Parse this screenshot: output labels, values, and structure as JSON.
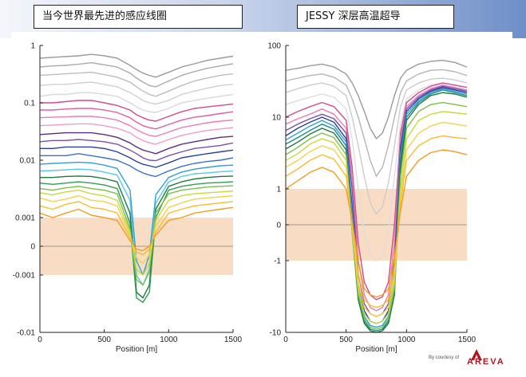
{
  "titles": {
    "left": "当今世界最先进的感应线圈",
    "right": "JESSY 深层高温超导"
  },
  "credit": {
    "by": "By courtesy of",
    "brand": "AREVA",
    "brand_color": "#b0161e"
  },
  "chart_data": [
    {
      "type": "line",
      "title": "当今世界最先进的感应线圈",
      "xlabel": "Position [m]",
      "xlim": [
        0,
        1500
      ],
      "x_ticks": [
        "0",
        "500",
        "1000",
        "1500"
      ],
      "yscale": "symlog",
      "ylim": [
        -0.01,
        1
      ],
      "y_ticks": [
        "1",
        "0.1",
        "0.01",
        "0.001",
        "0",
        "-0.001",
        "-0.01"
      ],
      "shaded_band": {
        "from": -0.001,
        "to": 0.001,
        "color": "#f9dcc4"
      },
      "x": [
        0,
        100,
        200,
        300,
        400,
        500,
        600,
        700,
        750,
        800,
        850,
        900,
        1000,
        1100,
        1200,
        1300,
        1400,
        1500
      ],
      "series": [
        {
          "color": "#9a9a9a",
          "values": [
            0.6,
            0.62,
            0.64,
            0.66,
            0.7,
            0.66,
            0.6,
            0.45,
            0.38,
            0.33,
            0.3,
            0.28,
            0.34,
            0.42,
            0.48,
            0.55,
            0.6,
            0.65
          ]
        },
        {
          "color": "#ababab",
          "values": [
            0.42,
            0.44,
            0.45,
            0.47,
            0.5,
            0.46,
            0.42,
            0.33,
            0.27,
            0.23,
            0.2,
            0.19,
            0.24,
            0.3,
            0.35,
            0.4,
            0.44,
            0.48
          ]
        },
        {
          "color": "#bdbdbd",
          "values": [
            0.3,
            0.31,
            0.32,
            0.33,
            0.34,
            0.31,
            0.28,
            0.23,
            0.19,
            0.16,
            0.14,
            0.13,
            0.16,
            0.2,
            0.24,
            0.27,
            0.3,
            0.32
          ]
        },
        {
          "color": "#cfcfcf",
          "values": [
            0.2,
            0.21,
            0.21,
            0.22,
            0.23,
            0.21,
            0.19,
            0.15,
            0.13,
            0.11,
            0.1,
            0.095,
            0.11,
            0.14,
            0.16,
            0.18,
            0.2,
            0.21
          ]
        },
        {
          "color": "#d9d9d9",
          "values": [
            0.13,
            0.14,
            0.14,
            0.15,
            0.15,
            0.14,
            0.13,
            0.1,
            0.085,
            0.075,
            0.07,
            0.068,
            0.08,
            0.1,
            0.11,
            0.12,
            0.13,
            0.14
          ]
        },
        {
          "color": "#d44a8a",
          "values": [
            0.1,
            0.1,
            0.105,
            0.11,
            0.11,
            0.1,
            0.09,
            0.075,
            0.062,
            0.055,
            0.05,
            0.048,
            0.058,
            0.07,
            0.08,
            0.085,
            0.09,
            0.095
          ]
        },
        {
          "color": "#e05fa0",
          "values": [
            0.075,
            0.075,
            0.078,
            0.08,
            0.08,
            0.075,
            0.068,
            0.055,
            0.046,
            0.04,
            0.037,
            0.035,
            0.042,
            0.05,
            0.056,
            0.06,
            0.065,
            0.07
          ]
        },
        {
          "color": "#ea7db5",
          "values": [
            0.055,
            0.056,
            0.057,
            0.058,
            0.058,
            0.055,
            0.05,
            0.04,
            0.034,
            0.03,
            0.027,
            0.026,
            0.031,
            0.037,
            0.041,
            0.045,
            0.048,
            0.05
          ]
        },
        {
          "color": "#f29ac9",
          "values": [
            0.04,
            0.041,
            0.042,
            0.043,
            0.043,
            0.04,
            0.036,
            0.03,
            0.025,
            0.022,
            0.02,
            0.019,
            0.023,
            0.027,
            0.03,
            0.033,
            0.035,
            0.037
          ]
        },
        {
          "color": "#5a2d82",
          "values": [
            0.028,
            0.029,
            0.03,
            0.03,
            0.03,
            0.028,
            0.025,
            0.02,
            0.017,
            0.015,
            0.014,
            0.013,
            0.016,
            0.019,
            0.021,
            0.023,
            0.025,
            0.026
          ]
        },
        {
          "color": "#7a4fa8",
          "values": [
            0.021,
            0.022,
            0.022,
            0.023,
            0.022,
            0.021,
            0.019,
            0.015,
            0.013,
            0.011,
            0.01,
            0.0098,
            0.012,
            0.014,
            0.016,
            0.017,
            0.018,
            0.02
          ]
        },
        {
          "color": "#2b3f9c",
          "values": [
            0.016,
            0.016,
            0.017,
            0.017,
            0.017,
            0.016,
            0.014,
            0.011,
            0.0095,
            0.0085,
            0.008,
            0.0075,
            0.009,
            0.011,
            0.012,
            0.013,
            0.014,
            0.015
          ]
        },
        {
          "color": "#3c6fd1",
          "values": [
            0.012,
            0.012,
            0.012,
            0.013,
            0.012,
            0.011,
            0.01,
            0.008,
            0.0068,
            0.006,
            0.0055,
            0.0052,
            0.0065,
            0.0078,
            0.0088,
            0.0095,
            0.01,
            0.011
          ]
        },
        {
          "color": "#2f9fdc",
          "values": [
            0.0085,
            0.0088,
            0.009,
            0.0092,
            0.009,
            0.0082,
            0.0072,
            0.003,
            -0.0005,
            -0.001,
            -0.0003,
            0.0025,
            0.005,
            0.0062,
            0.007,
            0.0075,
            0.008,
            0.0082
          ]
        },
        {
          "color": "#5bc7e8",
          "values": [
            0.0065,
            0.0066,
            0.0068,
            0.007,
            0.0068,
            0.0062,
            0.0055,
            0.002,
            -0.001,
            -0.0015,
            -0.0008,
            0.0018,
            0.0042,
            0.0052,
            0.0058,
            0.006,
            0.0063,
            0.0065
          ]
        },
        {
          "color": "#1a7a3c",
          "values": [
            0.005,
            0.005,
            0.0052,
            0.0053,
            0.0052,
            0.0048,
            0.0042,
            0.0012,
            -0.002,
            -0.0025,
            -0.0015,
            0.0014,
            0.0035,
            0.0042,
            0.0047,
            0.005,
            0.0052,
            0.0053
          ]
        },
        {
          "color": "#2e9e55",
          "values": [
            0.004,
            0.0038,
            0.004,
            0.0042,
            0.004,
            0.0037,
            0.0032,
            0.0008,
            -0.0025,
            -0.003,
            -0.002,
            0.001,
            0.003,
            0.0035,
            0.0038,
            0.004,
            0.0041,
            0.0042
          ]
        },
        {
          "color": "#7bbf4a",
          "values": [
            0.0032,
            0.003,
            0.0033,
            0.0035,
            0.0032,
            0.003,
            0.0026,
            0.0006,
            -0.0012,
            -0.0015,
            -0.0009,
            0.0012,
            0.0026,
            0.003,
            0.0032,
            0.0034,
            0.0035,
            0.0036
          ]
        },
        {
          "color": "#c8d93a",
          "values": [
            0.0027,
            0.0025,
            0.0028,
            0.003,
            0.0026,
            0.0024,
            0.002,
            0.0005,
            -0.0008,
            -0.001,
            -0.0006,
            0.0009,
            0.002,
            0.0024,
            0.0026,
            0.0027,
            0.0028,
            0.0029
          ]
        },
        {
          "color": "#f2d14b",
          "values": [
            0.0022,
            0.0019,
            0.0021,
            0.0024,
            0.002,
            0.0019,
            0.0016,
            0.0004,
            -0.0004,
            -0.0006,
            -0.0003,
            0.0007,
            0.0015,
            0.0018,
            0.0021,
            0.0022,
            0.0023,
            0.0024
          ]
        },
        {
          "color": "#f7bd2a",
          "values": [
            0.0016,
            0.0014,
            0.0017,
            0.0019,
            0.0015,
            0.0014,
            0.0012,
            0.0003,
            -0.0002,
            -0.0003,
            -0.0001,
            0.0005,
            0.0012,
            0.0014,
            0.0016,
            0.0017,
            0.0018,
            0.0019
          ]
        },
        {
          "color": "#f39c1f",
          "values": [
            0.0012,
            0.001,
            0.0012,
            0.0014,
            0.0011,
            0.001,
            0.0009,
            0.0002,
            -0.0001,
            -0.00015,
            0.0,
            0.0004,
            0.0009,
            0.001,
            0.0012,
            0.0013,
            0.0014,
            0.0015
          ]
        }
      ]
    },
    {
      "type": "line",
      "title": "JESSY 深层高温超导",
      "xlabel": "Position [m]",
      "xlim": [
        0,
        1500
      ],
      "x_ticks": [
        "0",
        "500",
        "1000",
        "1500"
      ],
      "yscale": "symlog",
      "ylim": [
        -10,
        100
      ],
      "y_ticks": [
        "100",
        "10",
        "1",
        "0",
        "-1",
        "-10"
      ],
      "shaded_band": {
        "from": -1,
        "to": 1,
        "color": "#f9dcc4"
      },
      "x": [
        0,
        100,
        200,
        300,
        400,
        500,
        550,
        600,
        650,
        700,
        750,
        800,
        850,
        900,
        950,
        1000,
        1100,
        1200,
        1300,
        1400,
        1500
      ],
      "series": [
        {
          "color": "#9a9a9a",
          "values": [
            45,
            48,
            52,
            55,
            50,
            40,
            30,
            20,
            12,
            7,
            5,
            6,
            10,
            20,
            35,
            45,
            55,
            60,
            62,
            58,
            50
          ]
        },
        {
          "color": "#b5b5b5",
          "values": [
            32,
            35,
            38,
            40,
            36,
            28,
            18,
            10,
            5,
            2.5,
            1.5,
            2,
            4,
            10,
            22,
            32,
            40,
            45,
            46,
            43,
            38
          ]
        },
        {
          "color": "#cccccc",
          "values": [
            22,
            25,
            28,
            30,
            27,
            20,
            10,
            4,
            1.5,
            0.6,
            0.3,
            0.5,
            1.2,
            4,
            14,
            24,
            30,
            34,
            35,
            33,
            30
          ]
        },
        {
          "color": "#dedede",
          "values": [
            15,
            17,
            19,
            21,
            19,
            13,
            5,
            1,
            -0.3,
            -0.8,
            -1,
            -0.9,
            -0.2,
            1.5,
            8,
            18,
            24,
            28,
            30,
            28,
            26
          ]
        },
        {
          "color": "#d44a8a",
          "values": [
            10,
            12,
            14,
            16,
            14,
            9,
            2,
            -0.5,
            -2,
            -3,
            -3.5,
            -3.2,
            -2,
            0,
            6,
            16,
            22,
            27,
            30,
            28,
            26
          ]
        },
        {
          "color": "#ea7db5",
          "values": [
            8,
            9.5,
            11,
            13,
            11,
            7,
            1.5,
            -1,
            -3,
            -4.5,
            -5,
            -4.5,
            -3,
            -0.5,
            5,
            14,
            20,
            25,
            28,
            26,
            24
          ]
        },
        {
          "color": "#7a4fa8",
          "values": [
            6.5,
            8,
            9.5,
            11,
            9.5,
            6,
            1,
            -1.5,
            -4,
            -5.5,
            -6,
            -5.5,
            -4,
            -1,
            4,
            13,
            19,
            24,
            27,
            25,
            23
          ]
        },
        {
          "color": "#2b3f9c",
          "values": [
            5.5,
            7,
            8.5,
            10,
            8.5,
            5,
            0.5,
            -2,
            -5,
            -7,
            -7.5,
            -7,
            -5,
            -1.5,
            3.5,
            12,
            18,
            23,
            26,
            24,
            22
          ]
        },
        {
          "color": "#2f9fdc",
          "values": [
            4.8,
            6,
            7.5,
            9,
            7.5,
            4.5,
            0.3,
            -2.5,
            -6,
            -8,
            -8.5,
            -8,
            -6,
            -2,
            3,
            11,
            17,
            22,
            25,
            23,
            21
          ]
        },
        {
          "color": "#1a8a8a",
          "values": [
            4.2,
            5.2,
            6.5,
            8,
            6.8,
            4,
            0,
            -3,
            -7,
            -9,
            -9.5,
            -9,
            -7,
            -2.5,
            2.5,
            10,
            16,
            21,
            24,
            22,
            20
          ]
        },
        {
          "color": "#1a7a3c",
          "values": [
            3.6,
            4.5,
            5.8,
            7,
            6,
            3.5,
            -0.2,
            -3.5,
            -7.5,
            -9.5,
            -10,
            -9.5,
            -7.5,
            -3,
            2,
            9,
            15,
            20,
            22,
            21,
            19
          ]
        },
        {
          "color": "#7bbf4a",
          "values": [
            3,
            3.8,
            5,
            6,
            5.2,
            3,
            -0.2,
            -3,
            -6.5,
            -8.5,
            -9,
            -8.5,
            -6.5,
            -2.5,
            1.5,
            7,
            12,
            15,
            16,
            15,
            14
          ]
        },
        {
          "color": "#c8d93a",
          "values": [
            2.5,
            3.1,
            4.2,
            5,
            4.4,
            2.5,
            -0.1,
            -2.5,
            -5.5,
            -7,
            -7.5,
            -7,
            -5.5,
            -2,
            1,
            5,
            9,
            11,
            12,
            11.5,
            11
          ]
        },
        {
          "color": "#f2d14b",
          "values": [
            2,
            2.5,
            3.3,
            4,
            3.5,
            2,
            0,
            -2,
            -4.5,
            -5.5,
            -6,
            -5.5,
            -4.5,
            -1.6,
            0.8,
            3.5,
            6,
            7.5,
            8.5,
            8,
            7.5
          ]
        },
        {
          "color": "#f7bd2a",
          "values": [
            1.5,
            1.9,
            2.5,
            3,
            2.6,
            1.5,
            0.1,
            -1.5,
            -3.5,
            -4.2,
            -4.5,
            -4.2,
            -3.5,
            -1.2,
            0.6,
            2.5,
            4,
            5,
            5.5,
            5.2,
            5
          ]
        },
        {
          "color": "#f39c1f",
          "values": [
            1,
            1.3,
            1.7,
            2,
            1.7,
            1,
            0.1,
            -1,
            -2.5,
            -3,
            -3.2,
            -3,
            -2.5,
            -0.9,
            0.4,
            1.5,
            2.5,
            3.2,
            3.5,
            3.3,
            3
          ]
        }
      ]
    }
  ]
}
